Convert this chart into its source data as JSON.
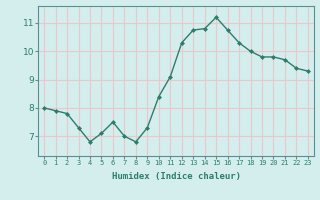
{
  "x": [
    0,
    1,
    2,
    3,
    4,
    5,
    6,
    7,
    8,
    9,
    10,
    11,
    12,
    13,
    14,
    15,
    16,
    17,
    18,
    19,
    20,
    21,
    22,
    23
  ],
  "y": [
    8.0,
    7.9,
    7.8,
    7.3,
    6.8,
    7.1,
    7.5,
    7.0,
    6.8,
    7.3,
    8.4,
    9.1,
    10.3,
    10.75,
    10.8,
    11.2,
    10.75,
    10.3,
    10.0,
    9.8,
    9.8,
    9.7,
    9.4,
    9.3
  ],
  "xlabel": "Humidex (Indice chaleur)",
  "ylim": [
    6.3,
    11.6
  ],
  "xlim": [
    -0.5,
    23.5
  ],
  "yticks": [
    7,
    8,
    9,
    10,
    11
  ],
  "xticks": [
    0,
    1,
    2,
    3,
    4,
    5,
    6,
    7,
    8,
    9,
    10,
    11,
    12,
    13,
    14,
    15,
    16,
    17,
    18,
    19,
    20,
    21,
    22,
    23
  ],
  "line_color": "#2d7d6e",
  "marker_color": "#2d7d6e",
  "bg_color": "#d4eeee",
  "grid_color": "#e8c8c8",
  "text_color": "#2d7d6e",
  "xlabel_color": "#2d7d6e"
}
